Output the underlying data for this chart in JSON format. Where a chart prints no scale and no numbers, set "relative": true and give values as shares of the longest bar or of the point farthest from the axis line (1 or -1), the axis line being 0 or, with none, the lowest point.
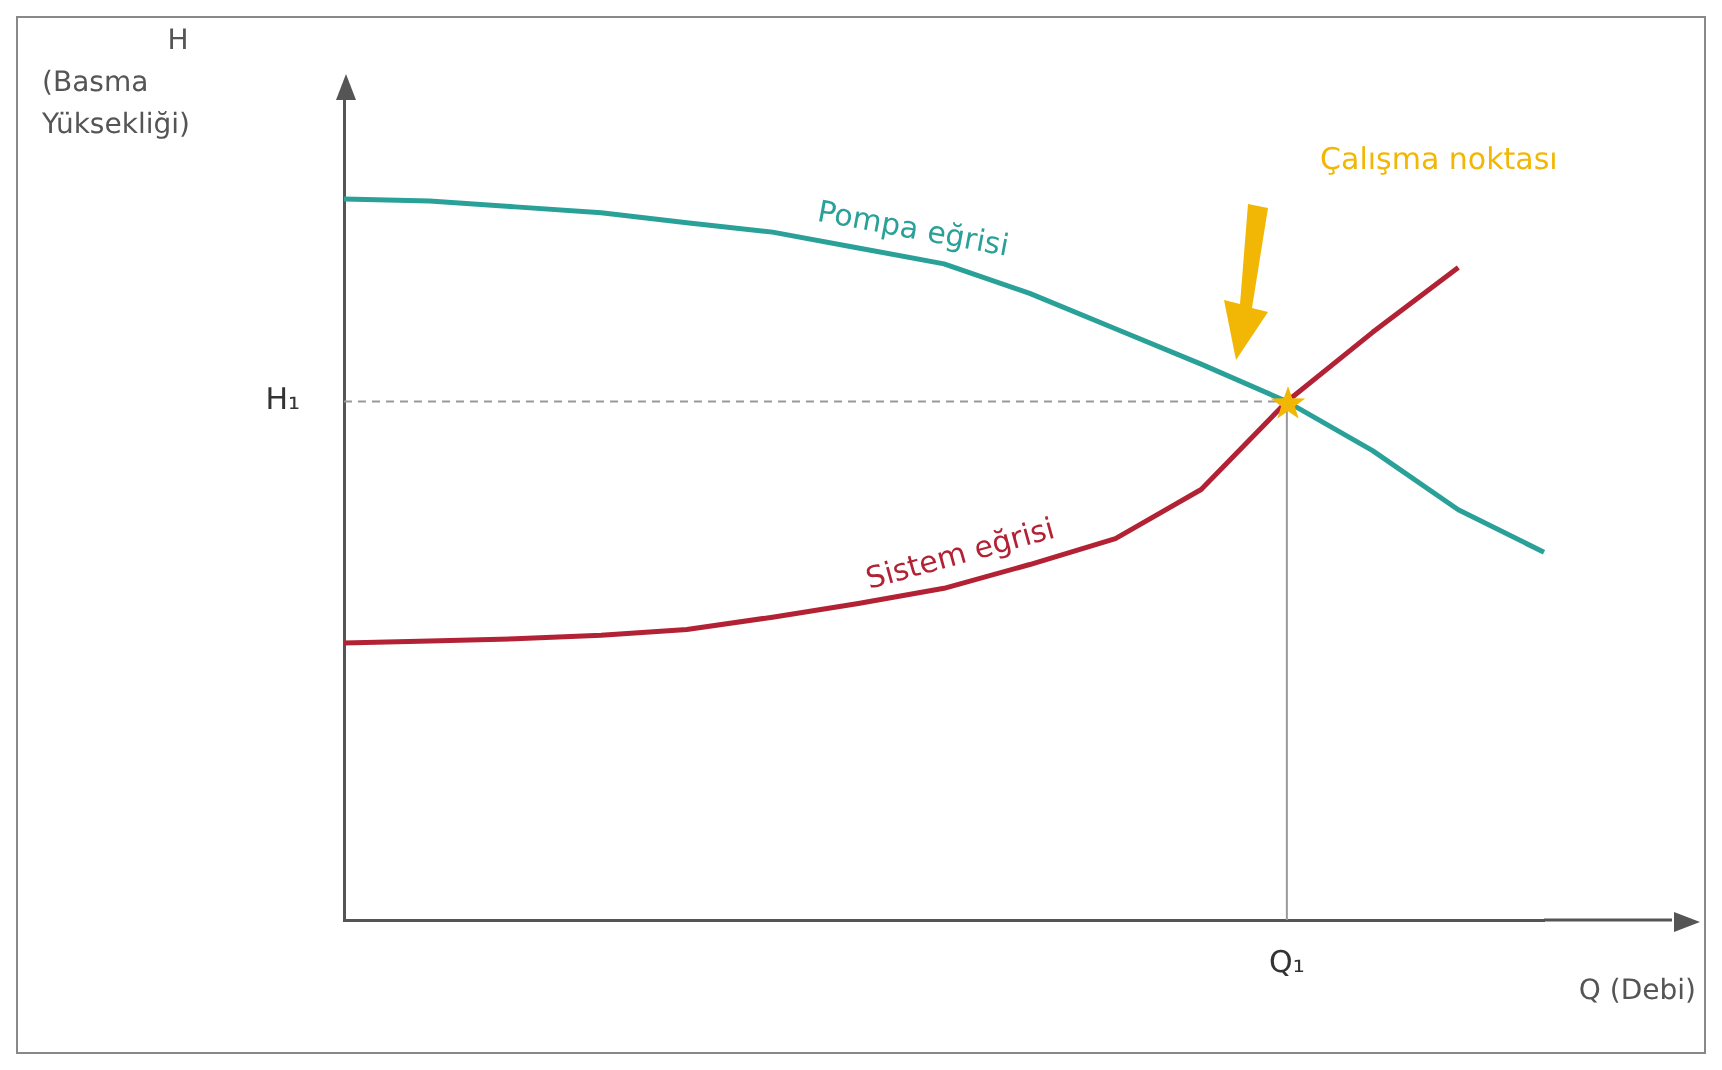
{
  "chart_data": {
    "type": "line",
    "relative": true,
    "xlabel": "Q (Debi)",
    "grid": false,
    "legend": false,
    "marker": "none",
    "line_style": "solid",
    "categories": [
      null,
      null,
      null,
      null,
      null,
      null,
      null,
      null,
      null,
      null,
      null,
      null,
      null,
      null,
      null
    ],
    "series": [
      {
        "name": "Pompa eğrisi",
        "color": "#2aa198",
        "values": [
          1.0,
          0.997,
          0.989,
          0.981,
          0.967,
          0.954,
          0.932,
          0.91,
          0.869,
          0.82,
          0.771,
          0.719,
          0.651,
          0.569,
          0.51
        ]
      },
      {
        "name": "Sistem eğrisi",
        "color": "#b22234",
        "values": [
          0.384,
          0.387,
          0.39,
          0.395,
          0.403,
          0.42,
          0.439,
          0.46,
          0.493,
          0.529,
          0.597,
          0.719,
          0.815,
          0.905,
          null
        ]
      }
    ],
    "ref_lines": [
      {
        "axis": "y",
        "value": 0.719,
        "label": "H₁",
        "color": "#999999",
        "line_style": "dashed"
      }
    ],
    "annotations": [
      "H\n(Basma\nYüksekliği)",
      "Çalışma noktası",
      "Q₁"
    ]
  }
}
